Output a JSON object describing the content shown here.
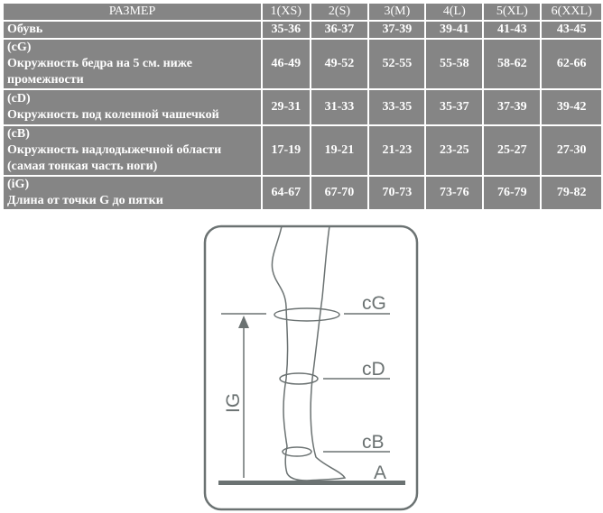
{
  "table": {
    "header": [
      "РАЗМЕР",
      "1(XS)",
      "2(S)",
      "3(M)",
      "4(L)",
      "5(XL)",
      "6(XXL)"
    ],
    "rows": [
      {
        "code": "",
        "label": "Обувь",
        "label2": "",
        "values": [
          "35-36",
          "36-37",
          "37-39",
          "39-41",
          "41-43",
          "43-45"
        ]
      },
      {
        "code": "(cG)",
        "label": "Окружность бедра на 5 см. ниже",
        "label2": "промежности",
        "values": [
          "46-49",
          "49-52",
          "52-55",
          "55-58",
          "58-62",
          "62-66"
        ]
      },
      {
        "code": "(cD)",
        "label": "Окружность под коленной чашечкой",
        "label2": "",
        "values": [
          "29-31",
          "31-33",
          "33-35",
          "35-37",
          "37-39",
          "39-42"
        ]
      },
      {
        "code": "(cB)",
        "label": "Окружность надлодыжечной области",
        "label2": "(самая тонкая часть ноги)",
        "values": [
          "17-19",
          "19-21",
          "21-23",
          "23-25",
          "25-27",
          "27-30"
        ]
      },
      {
        "code": "(iG)",
        "label": "Длина от точки G до пятки",
        "label2": "",
        "values": [
          "64-67",
          "67-70",
          "70-73",
          "73-76",
          "76-79",
          "79-82"
        ]
      }
    ]
  },
  "diagram": {
    "labels": {
      "cG": "cG",
      "cD": "cD",
      "cB": "cB",
      "A": "A",
      "IG": "IG"
    },
    "line_color": "#6b7272"
  }
}
